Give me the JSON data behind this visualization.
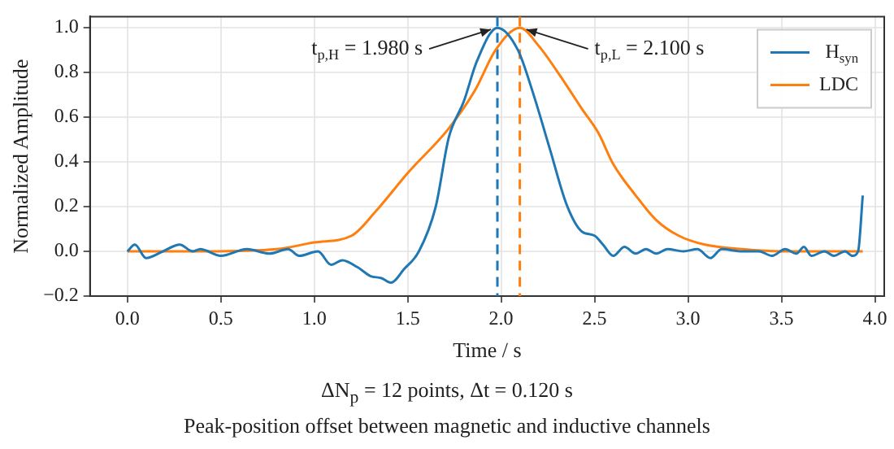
{
  "chart_data": {
    "type": "line",
    "xlabel": "Time / s",
    "ylabel": "Normalized Amplitude",
    "xlim": [
      -0.2,
      4.05
    ],
    "ylim": [
      -0.2,
      1.05
    ],
    "xticks": [
      {
        "value": 0,
        "label": "0.0"
      },
      {
        "value": 0.5,
        "label": "0.5"
      },
      {
        "value": 1,
        "label": "1.0"
      },
      {
        "value": 1.5,
        "label": "1.5"
      },
      {
        "value": 2,
        "label": "2.0"
      },
      {
        "value": 2.5,
        "label": "2.5"
      },
      {
        "value": 3,
        "label": "3.0"
      },
      {
        "value": 3.5,
        "label": "3.5"
      },
      {
        "value": 4,
        "label": "4.0"
      }
    ],
    "yticks": [
      {
        "value": -0.2,
        "label": "−0.2"
      },
      {
        "value": 0,
        "label": "0.0"
      },
      {
        "value": 0.2,
        "label": "0.2"
      },
      {
        "value": 0.4,
        "label": "0.4"
      },
      {
        "value": 0.6,
        "label": "0.6"
      },
      {
        "value": 0.8,
        "label": "0.8"
      },
      {
        "value": 1,
        "label": "1.0"
      }
    ],
    "grid": true,
    "legend": "top right",
    "marker": "none",
    "line_style": "solid",
    "series": [
      {
        "name": "H$_{syn}$",
        "color": "#1f77b4",
        "x": [
          0,
          0.04,
          0.1,
          0.19,
          0.28,
          0.35,
          0.39,
          0.5,
          0.64,
          0.76,
          0.86,
          0.92,
          1.02,
          1.09,
          1.15,
          1.23,
          1.3,
          1.36,
          1.41,
          1.48,
          1.56,
          1.65,
          1.72,
          1.8,
          1.87,
          1.98,
          2.09,
          2.17,
          2.26,
          2.35,
          2.43,
          2.5,
          2.545,
          2.6,
          2.66,
          2.72,
          2.775,
          2.83,
          2.89,
          2.975,
          3.05,
          3.12,
          3.18,
          3.29,
          3.38,
          3.45,
          3.52,
          3.58,
          3.62,
          3.66,
          3.73,
          3.78,
          3.84,
          3.88,
          3.91,
          3.935
        ],
        "values": [
          0,
          0.03,
          -0.03,
          0,
          0.03,
          0,
          0.01,
          -0.02,
          0.01,
          -0.01,
          0.01,
          -0.02,
          0,
          -0.06,
          -0.04,
          -0.07,
          -0.11,
          -0.12,
          -0.14,
          -0.08,
          0,
          0.2,
          0.51,
          0.67,
          0.85,
          1.0,
          0.9,
          0.71,
          0.46,
          0.21,
          0.09,
          0.07,
          0.03,
          -0.02,
          0.02,
          -0.01,
          0.01,
          -0.01,
          0.01,
          0,
          0.01,
          -0.03,
          0.01,
          0,
          0,
          -0.02,
          0.01,
          -0.01,
          0.02,
          -0.02,
          0,
          -0.02,
          0,
          -0.02,
          0,
          0.25
        ]
      },
      {
        "name": "LDC",
        "color": "#ff7f0e",
        "x": [
          0,
          0.4,
          0.8,
          1.0,
          1.2,
          1.33,
          1.5,
          1.72,
          1.86,
          1.97,
          2.1,
          2.2,
          2.32,
          2.43,
          2.52,
          2.6,
          2.72,
          2.83,
          2.95,
          3.09,
          3.29,
          3.5,
          3.935
        ],
        "values": [
          0,
          0,
          0.01,
          0.04,
          0.07,
          0.18,
          0.35,
          0.55,
          0.72,
          0.9,
          1.0,
          0.92,
          0.78,
          0.64,
          0.53,
          0.39,
          0.25,
          0.14,
          0.07,
          0.03,
          0.01,
          0,
          0
        ]
      }
    ],
    "ref_lines": [
      {
        "axis": "x",
        "value": 1.98,
        "color": "#1f77b4",
        "line_style": "dashed"
      },
      {
        "axis": "x",
        "value": 2.1,
        "color": "#ff7f0e",
        "line_style": "dashed"
      }
    ],
    "annotations": [
      {
        "text": "t$_{p,H}$ = 1.980 s",
        "x": 1.98,
        "y": 1.0
      },
      {
        "text": "t$_{p,L}$ = 2.100 s",
        "x": 2.1,
        "y": 1.0
      },
      "ΔN$_{p}$ =  12 points, Δt = 0.120 s",
      "Peak-position offset between magnetic and inductive channels"
    ]
  }
}
